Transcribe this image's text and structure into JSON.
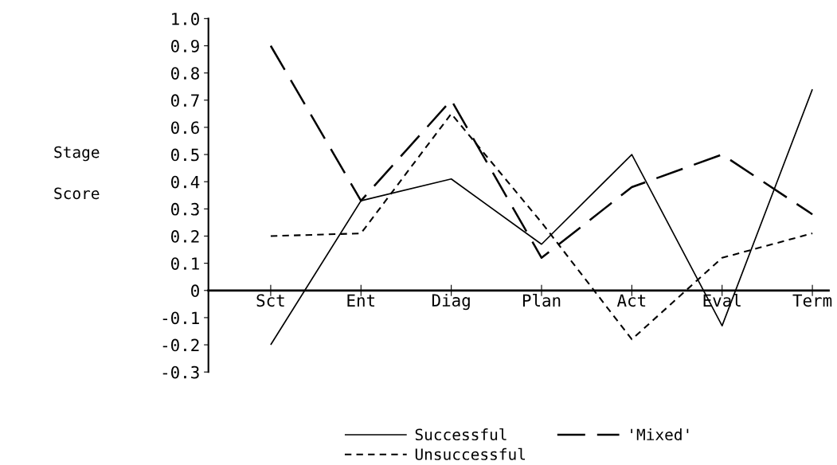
{
  "chart_data": {
    "type": "line",
    "ylabel": "Stage\nScore",
    "categories": [
      "Sct",
      "Ent",
      "Diag",
      "Plan",
      "Act",
      "Eval",
      "Term"
    ],
    "series": [
      {
        "name": "Successful",
        "color": "#000000",
        "line_style": "solid",
        "values": [
          -0.2,
          0.33,
          0.41,
          0.17,
          0.5,
          -0.13,
          0.74
        ]
      },
      {
        "name": "'Mixed'",
        "color": "#000000",
        "line_style": "dashed",
        "values": [
          0.9,
          0.33,
          0.7,
          0.12,
          0.38,
          0.5,
          0.28
        ]
      },
      {
        "name": "Unsuccessful",
        "color": "#000000",
        "line_style": "dotted",
        "values": [
          0.2,
          0.21,
          0.65,
          0.25,
          -0.18,
          0.12,
          0.21
        ]
      }
    ],
    "ylim": [
      -0.3,
      1.0
    ],
    "yticks": [
      {
        "value": -0.3,
        "label": "-0.3"
      },
      {
        "value": -0.2,
        "label": "-0.2"
      },
      {
        "value": -0.1,
        "label": "-0.1"
      },
      0,
      0.1,
      0.2,
      0.3,
      0.4,
      0.5,
      0.6,
      0.7,
      0.8,
      0.9,
      {
        "value": 1.0,
        "label": "1.0"
      }
    ],
    "grid": false,
    "legend": "bottom",
    "marker": "none"
  }
}
